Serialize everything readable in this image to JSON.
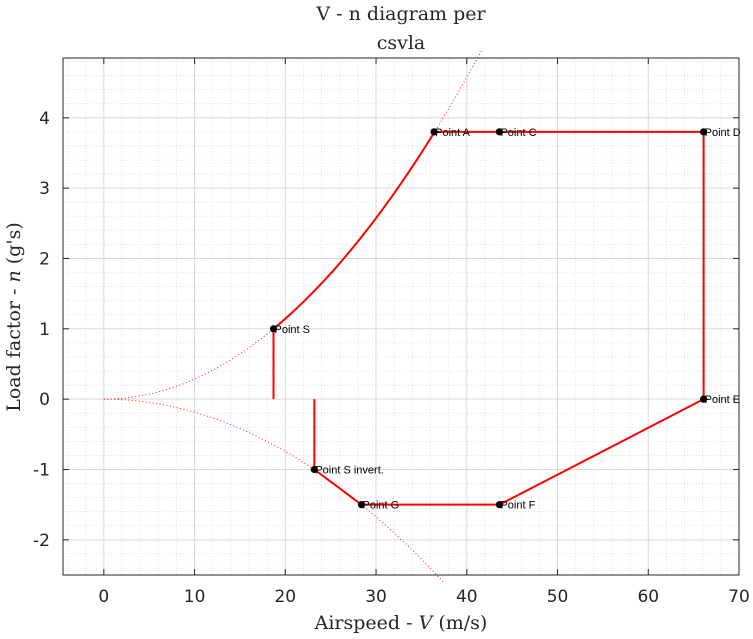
{
  "chart_data": {
    "type": "line",
    "title": [
      "V - n diagram per",
      "csvla"
    ],
    "xlabel_parts": [
      "Airspeed - ",
      "V",
      " (m/s)"
    ],
    "ylabel_parts": [
      "Load factor - ",
      "n",
      " (g's)"
    ],
    "xlim": [
      -4.5,
      70
    ],
    "ylim": [
      -2.5,
      4.85
    ],
    "xticks": [
      0,
      10,
      20,
      30,
      40,
      50,
      60,
      70
    ],
    "yticks": [
      -2,
      -1,
      0,
      1,
      2,
      3,
      4
    ],
    "ytick_labels": [
      "-2",
      "-1",
      "0",
      "1",
      "2",
      "3",
      "4"
    ],
    "grid": "major and minor",
    "minor_step_x": 2,
    "minor_step_y": 0.2,
    "colors": {
      "envelope": "#ff0000",
      "points": "#000000",
      "axes": "#262626"
    },
    "stall_positive": {
      "V_S": 18.7,
      "n": 1
    },
    "stall_negative": {
      "V_S": 23.2,
      "n": -1
    },
    "envelope": [
      {
        "x": 18.7,
        "y": 0
      },
      {
        "x": 18.7,
        "y": 1
      },
      {
        "x": 36.4,
        "y": 3.8
      },
      {
        "x": 43.6,
        "y": 3.8
      },
      {
        "x": 66.1,
        "y": 3.8
      },
      {
        "x": 66.1,
        "y": 0
      },
      {
        "x": 43.6,
        "y": -1.5
      },
      {
        "x": 28.4,
        "y": -1.5
      },
      {
        "x": 23.2,
        "y": -1
      },
      {
        "x": 23.2,
        "y": 0
      }
    ],
    "points": [
      {
        "label": "Point A",
        "x": 36.4,
        "y": 3.8
      },
      {
        "label": "Point C",
        "x": 43.6,
        "y": 3.8
      },
      {
        "label": "Point D",
        "x": 66.1,
        "y": 3.8
      },
      {
        "label": "Point S",
        "x": 18.7,
        "y": 1
      },
      {
        "label": "Point E",
        "x": 66.1,
        "y": 0
      },
      {
        "label": "Point S invert.",
        "x": 23.2,
        "y": -1
      },
      {
        "label": "Point G",
        "x": 28.4,
        "y": -1.5
      },
      {
        "label": "Point F",
        "x": 43.6,
        "y": -1.5
      }
    ]
  }
}
